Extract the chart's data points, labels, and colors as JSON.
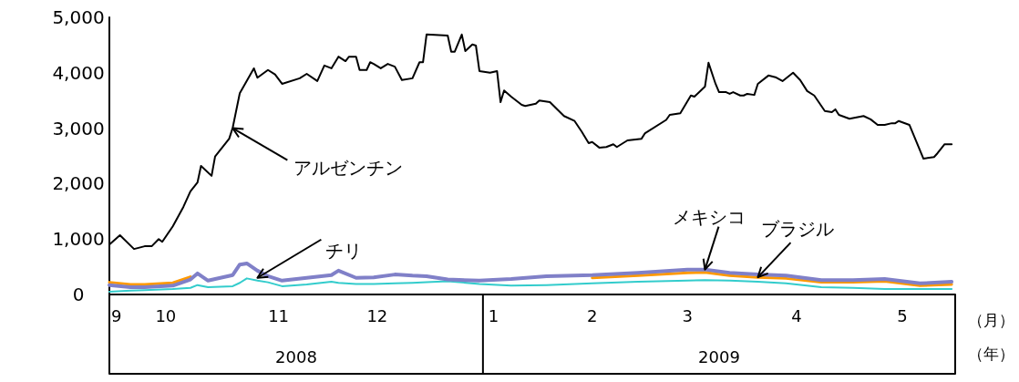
{
  "chart_data": {
    "type": "line",
    "xlabel": "（月）",
    "x2label": "（年）",
    "xlim": [
      "2008-09-17",
      "2009-05-15"
    ],
    "xticks": [
      {
        "value": "2008-09-19",
        "label": "9"
      },
      {
        "value": "2008-10-03",
        "label": "10"
      },
      {
        "value": "2008-11-04",
        "label": "11"
      },
      {
        "value": "2008-12-02",
        "label": "12"
      },
      {
        "value": "2009-01-04",
        "label": "1"
      },
      {
        "value": "2009-02-01",
        "label": "2"
      },
      {
        "value": "2009-02-28",
        "label": "3"
      },
      {
        "value": "2009-03-31",
        "label": "4"
      },
      {
        "value": "2009-04-30",
        "label": "5"
      }
    ],
    "x2lim": [
      "2008-09-17",
      "2009-05-15"
    ],
    "x2ticks": [
      {
        "value": "2008-11-09",
        "label": "2008"
      },
      {
        "value": "2009-03-09",
        "label": "2009"
      }
    ],
    "ylim": [
      0,
      5000
    ],
    "yticks": [
      0,
      {
        "value": 1000,
        "label": "1,000"
      },
      {
        "value": 2000,
        "label": "2,000"
      },
      {
        "value": 3000,
        "label": "3,000"
      },
      {
        "value": 4000,
        "label": "4,000"
      },
      {
        "value": 5000,
        "label": "5,000"
      }
    ],
    "annotations": [
      {
        "text": "アルゼンチン",
        "x": "2008-10-22",
        "y": 3000
      },
      {
        "text": "チリ",
        "x": "2008-10-29",
        "y": 300
      },
      {
        "text": "メキシコ",
        "x": "2009-03-05",
        "y": 450
      },
      {
        "text": "ブラジル",
        "x": "2009-03-20",
        "y": 310
      }
    ],
    "series": [
      {
        "color": "#000000",
        "x": [
          "2008-09-17",
          "2008-09-20",
          "2008-09-24",
          "2008-09-27",
          "2008-09-29",
          "2008-10-01",
          "2008-10-02",
          "2008-10-05",
          "2008-10-08",
          "2008-10-10",
          "2008-10-12",
          "2008-10-13",
          "2008-10-16",
          "2008-10-17",
          "2008-10-21",
          "2008-10-22",
          "2008-10-24",
          "2008-10-28",
          "2008-10-29",
          "2008-11-01",
          "2008-11-03",
          "2008-11-05",
          "2008-11-10",
          "2008-11-12",
          "2008-11-15",
          "2008-11-17",
          "2008-11-19",
          "2008-11-21",
          "2008-11-23",
          "2008-11-24",
          "2008-11-26",
          "2008-11-27",
          "2008-11-29",
          "2008-11-30",
          "2008-12-01",
          "2008-12-03",
          "2008-12-05",
          "2008-12-07",
          "2008-12-09",
          "2008-12-12",
          "2008-12-14",
          "2008-12-15",
          "2008-12-16",
          "2008-12-22",
          "2008-12-23",
          "2008-12-24",
          "2008-12-26",
          "2008-12-27",
          "2008-12-29",
          "2008-12-30",
          "2008-12-31",
          "2009-01-03",
          "2009-01-05",
          "2009-01-06",
          "2009-01-07",
          "2009-01-09",
          "2009-01-12",
          "2009-01-13",
          "2009-01-16",
          "2009-01-17",
          "2009-01-20",
          "2009-01-24",
          "2009-01-27",
          "2009-01-29",
          "2009-01-31",
          "2009-02-01",
          "2009-02-03",
          "2009-02-05",
          "2009-02-07",
          "2009-02-08",
          "2009-02-11",
          "2009-02-15",
          "2009-02-16",
          "2009-02-22",
          "2009-02-23",
          "2009-02-26",
          "2009-03-01",
          "2009-03-02",
          "2009-03-05",
          "2009-03-06",
          "2009-03-08",
          "2009-03-09",
          "2009-03-11",
          "2009-03-12",
          "2009-03-13",
          "2009-03-15",
          "2009-03-16",
          "2009-03-17",
          "2009-03-19",
          "2009-03-20",
          "2009-03-23",
          "2009-03-25",
          "2009-03-27",
          "2009-03-30",
          "2009-04-01",
          "2009-04-03",
          "2009-04-05",
          "2009-04-08",
          "2009-04-10",
          "2009-04-11",
          "2009-04-12",
          "2009-04-15",
          "2009-04-19",
          "2009-04-21",
          "2009-04-23",
          "2009-04-25",
          "2009-04-27",
          "2009-04-28",
          "2009-04-29",
          "2009-05-02",
          "2009-05-06",
          "2009-05-09",
          "2009-05-10",
          "2009-05-12",
          "2009-05-14"
        ],
        "values": [
          900,
          1070,
          820,
          870,
          870,
          1000,
          950,
          1230,
          1580,
          1860,
          2020,
          2320,
          2140,
          2490,
          2810,
          3010,
          3630,
          4080,
          3910,
          4050,
          3970,
          3800,
          3900,
          3980,
          3850,
          4130,
          4080,
          4290,
          4210,
          4290,
          4290,
          4050,
          4050,
          4190,
          4160,
          4080,
          4160,
          4110,
          3870,
          3900,
          4190,
          4190,
          4690,
          4670,
          4380,
          4380,
          4690,
          4390,
          4510,
          4490,
          4030,
          4000,
          4030,
          3470,
          3680,
          3570,
          3420,
          3400,
          3440,
          3500,
          3470,
          3220,
          3130,
          2940,
          2730,
          2750,
          2650,
          2660,
          2710,
          2660,
          2780,
          2810,
          2910,
          3150,
          3240,
          3270,
          3590,
          3570,
          3750,
          4180,
          3800,
          3650,
          3650,
          3620,
          3650,
          3590,
          3590,
          3620,
          3600,
          3800,
          3950,
          3920,
          3850,
          4000,
          3870,
          3670,
          3590,
          3310,
          3290,
          3340,
          3240,
          3170,
          3220,
          3160,
          3060,
          3060,
          3090,
          3090,
          3130,
          3060,
          2450,
          2480,
          2550,
          2710,
          2710
        ]
      },
      {
        "color": "#33cccc",
        "x": [
          "2008-09-17",
          "2008-09-23",
          "2008-09-27",
          "2008-10-05",
          "2008-10-10",
          "2008-10-12",
          "2008-10-15",
          "2008-10-22",
          "2008-10-24",
          "2008-10-26",
          "2008-10-29",
          "2008-11-01",
          "2008-11-05",
          "2008-11-12",
          "2008-11-19",
          "2008-11-21",
          "2008-11-26",
          "2008-12-01",
          "2008-12-07",
          "2008-12-12",
          "2008-12-16",
          "2008-12-22",
          "2008-12-31",
          "2009-01-09",
          "2009-01-19",
          "2009-02-01",
          "2009-02-14",
          "2009-02-28",
          "2009-03-05",
          "2009-03-12",
          "2009-03-20",
          "2009-03-28",
          "2009-04-07",
          "2009-04-16",
          "2009-04-25",
          "2009-05-05",
          "2009-05-14"
        ],
        "values": [
          50,
          70,
          80,
          100,
          120,
          170,
          130,
          150,
          210,
          290,
          250,
          220,
          150,
          180,
          230,
          210,
          190,
          190,
          200,
          210,
          220,
          240,
          190,
          160,
          170,
          200,
          230,
          250,
          260,
          250,
          230,
          200,
          130,
          120,
          100,
          100,
          100
        ]
      },
      {
        "color": "#ff9900",
        "x": [
          "2008-09-17",
          "2008-09-23",
          "2008-09-27",
          "2008-10-05",
          "2008-10-10",
          "2008-10-12",
          "2008-10-15",
          "2008-10-22",
          "2008-10-24",
          "2008-10-26",
          "2008-10-29",
          "2008-11-01",
          "2008-11-05",
          "2008-11-12",
          "2008-11-19",
          "2008-11-21",
          "2008-11-26",
          "2008-12-01",
          "2008-12-07",
          "2008-12-12",
          "2008-12-16",
          "2008-12-22",
          "2008-12-31",
          "2009-01-09",
          "2009-01-19",
          "2009-02-01",
          "2009-02-14",
          "2009-02-28",
          "2009-03-05",
          "2009-03-12",
          "2009-03-20",
          "2009-03-28",
          "2009-04-07",
          "2009-04-16",
          "2009-04-25",
          "2009-05-05",
          "2009-05-14"
        ],
        "values": [
          220,
          180,
          180,
          210,
          320,
          null,
          null,
          null,
          null,
          null,
          null,
          null,
          null,
          null,
          null,
          null,
          null,
          null,
          null,
          null,
          null,
          null,
          null,
          null,
          null,
          300,
          340,
          390,
          400,
          340,
          310,
          290,
          220,
          220,
          240,
          160,
          180
        ]
      },
      {
        "color": "#8080c8",
        "x": [
          "2008-09-17",
          "2008-09-23",
          "2008-09-27",
          "2008-10-05",
          "2008-10-10",
          "2008-10-12",
          "2008-10-15",
          "2008-10-22",
          "2008-10-24",
          "2008-10-26",
          "2008-10-29",
          "2008-11-01",
          "2008-11-05",
          "2008-11-12",
          "2008-11-19",
          "2008-11-21",
          "2008-11-26",
          "2008-12-01",
          "2008-12-07",
          "2008-12-12",
          "2008-12-16",
          "2008-12-22",
          "2008-12-31",
          "2009-01-09",
          "2009-01-19",
          "2009-02-01",
          "2009-02-14",
          "2009-02-28",
          "2009-03-05",
          "2009-03-12",
          "2009-03-20",
          "2009-03-28",
          "2009-04-07",
          "2009-04-16",
          "2009-04-25",
          "2009-05-05",
          "2009-05-14"
        ],
        "values": [
          170,
          130,
          130,
          160,
          270,
          380,
          250,
          350,
          540,
          560,
          430,
          330,
          250,
          300,
          350,
          430,
          300,
          310,
          360,
          340,
          330,
          270,
          250,
          280,
          330,
          350,
          390,
          450,
          450,
          390,
          360,
          340,
          260,
          260,
          280,
          200,
          230
        ]
      }
    ]
  }
}
